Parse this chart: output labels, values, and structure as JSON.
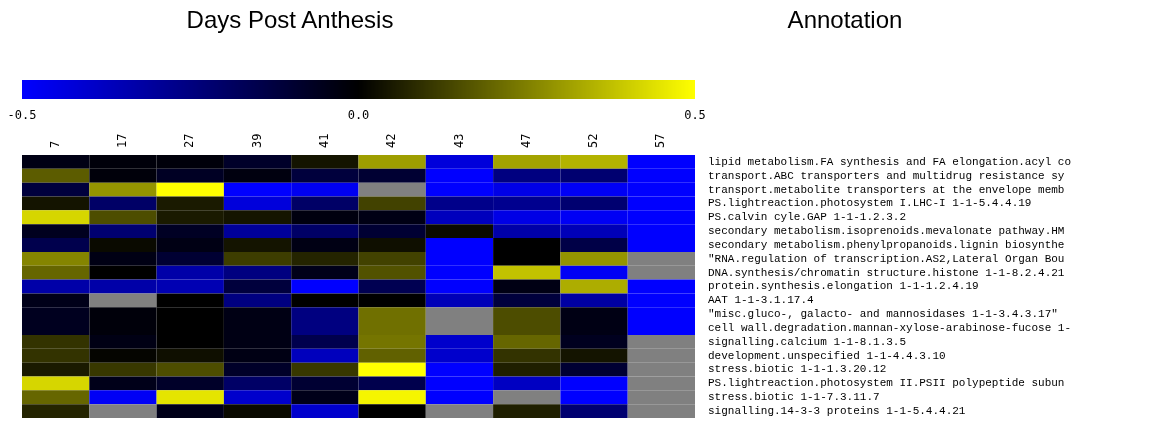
{
  "chart_data": {
    "type": "heatmap",
    "xlabel": "Days Post Anthesis",
    "annotations": [
      "Annotation"
    ],
    "categories": [
      "7",
      "17",
      "27",
      "39",
      "41",
      "42",
      "43",
      "47",
      "52",
      "57"
    ],
    "y_categories": [
      null,
      null,
      null,
      null,
      null,
      null,
      null,
      null,
      null,
      null,
      null,
      null,
      null,
      null,
      null,
      null,
      null,
      null,
      null
    ],
    "y2_categories": [
      "lipid metabolism.FA synthesis and FA elongation.acyl co",
      "transport.ABC transporters and multidrug resistance sy",
      "transport.metabolite transporters at the envelope memb",
      "PS.lightreaction.photosystem I.LHC-I 1-1-5.4.4.19",
      "PS.calvin cyle.GAP 1-1-1.2.3.2",
      "secondary metabolism.isoprenoids.mevalonate pathway.HM",
      "secondary metabolism.phenylpropanoids.lignin biosynthe",
      "\"RNA.regulation of transcription.AS2,Lateral Organ Bou",
      "DNA.synthesis/chromatin structure.histone 1-1-8.2.4.21",
      "protein.synthesis.elongation 1-1-1.2.4.19",
      "AAT 1-1-3.1.17.4",
      "\"misc.gluco-, galacto- and mannosidases 1-1-3.4.3.17\"",
      "cell wall.degradation.mannan-xylose-arabinose-fucose 1-",
      "signalling.calcium 1-1-8.1.3.5",
      "development.unspecified 1-1-4.4.3.10",
      "stress.biotic 1-1-1.3.20.12",
      "PS.lightreaction.photosystem II.PSII polypeptide subun",
      "stress.biotic 1-1-7.3.11.7",
      "signalling.14-3-3 proteins 1-1-5.4.4.21"
    ],
    "cells": [
      [
        -0.04,
        -0.02,
        -0.02,
        -0.08,
        0.04,
        0.31,
        -0.43,
        0.32,
        0.35,
        -0.5
      ],
      [
        0.18,
        -0.02,
        -0.07,
        -0.03,
        -0.12,
        -0.1,
        -0.5,
        -0.25,
        -0.22,
        -0.5
      ],
      [
        -0.12,
        0.29,
        0.5,
        -0.5,
        -0.47,
        null,
        -0.5,
        -0.45,
        -0.48,
        -0.5
      ],
      [
        0.04,
        -0.2,
        0.05,
        -0.43,
        -0.2,
        0.13,
        -0.27,
        -0.28,
        -0.22,
        -0.5
      ],
      [
        0.42,
        0.15,
        0.05,
        0.04,
        -0.03,
        -0.04,
        -0.37,
        -0.45,
        -0.48,
        -0.5
      ],
      [
        -0.06,
        -0.22,
        -0.07,
        -0.3,
        -0.2,
        -0.1,
        0.02,
        -0.33,
        -0.36,
        -0.5
      ],
      [
        -0.15,
        0.02,
        -0.04,
        0.04,
        -0.04,
        0.03,
        -0.5,
        0,
        -0.14,
        -0.5
      ],
      [
        0.26,
        -0.04,
        -0.1,
        0.12,
        0.07,
        0.13,
        -0.5,
        0,
        0.29,
        null
      ],
      [
        0.2,
        0,
        -0.33,
        -0.25,
        -0.05,
        0.16,
        -0.5,
        0.38,
        -0.48,
        null
      ],
      [
        -0.33,
        -0.33,
        -0.35,
        -0.12,
        -0.5,
        -0.16,
        -0.5,
        -0.04,
        0.34,
        -0.5
      ],
      [
        -0.05,
        null,
        0,
        -0.25,
        0,
        0,
        -0.36,
        -0.12,
        -0.32,
        -0.5
      ],
      [
        -0.06,
        -0.02,
        0,
        -0.04,
        -0.25,
        0.22,
        null,
        0.15,
        -0.04,
        -0.5
      ],
      [
        -0.06,
        -0.02,
        0,
        -0.04,
        -0.25,
        0.22,
        null,
        0.15,
        -0.04,
        -0.5
      ],
      [
        0.1,
        -0.04,
        0,
        -0.04,
        -0.15,
        0.23,
        -0.4,
        0.2,
        -0.06,
        null
      ],
      [
        0.1,
        0.01,
        0.03,
        -0.04,
        -0.37,
        0.19,
        -0.4,
        0.1,
        0.04,
        null
      ],
      [
        0.05,
        0.11,
        0.15,
        -0.08,
        0.11,
        0.5,
        -0.5,
        0.06,
        -0.1,
        null
      ],
      [
        0.42,
        -0.05,
        -0.08,
        -0.2,
        -0.1,
        -0.15,
        -0.5,
        -0.38,
        -0.5,
        null
      ],
      [
        0.2,
        -0.48,
        0.45,
        -0.4,
        -0.05,
        0.48,
        -0.5,
        null,
        -0.5,
        null
      ],
      [
        0.07,
        null,
        -0.05,
        0.02,
        -0.4,
        0,
        null,
        0.06,
        -0.22,
        null
      ]
    ],
    "clim": [
      -0.5,
      0.5
    ],
    "cticks": [
      -0.5,
      {
        "value": 0,
        "label": "0.0"
      },
      0.5
    ]
  }
}
